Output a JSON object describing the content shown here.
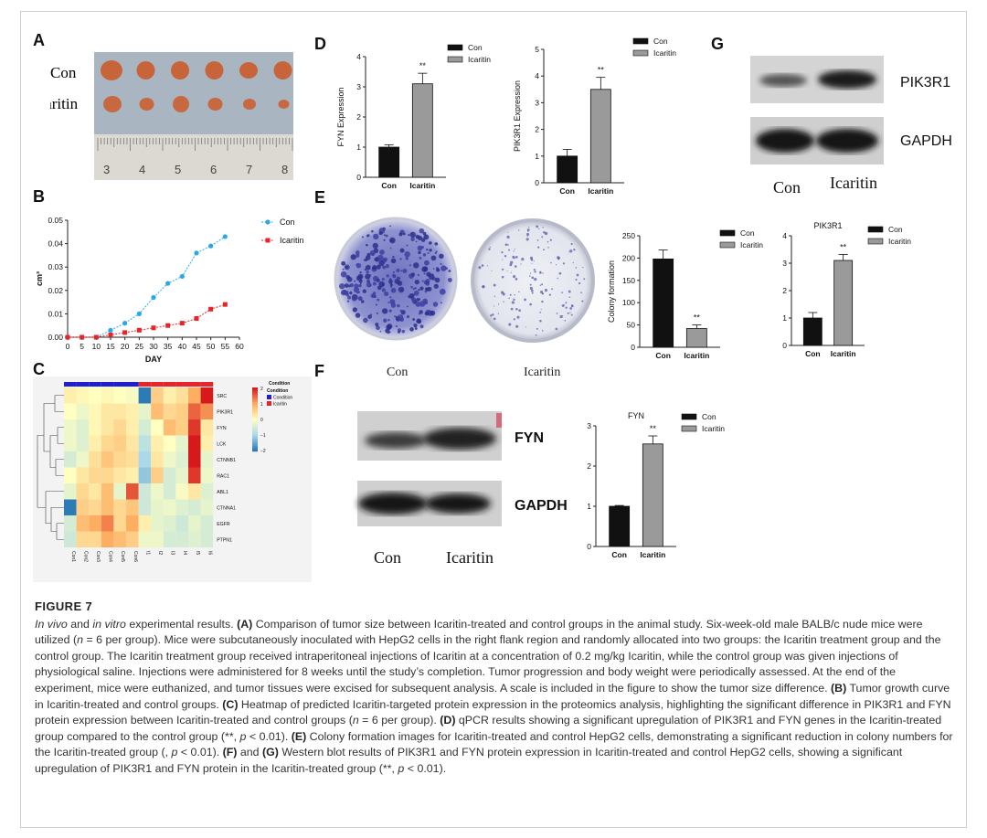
{
  "panels": {
    "A": {
      "label": "A",
      "rows": [
        "Con",
        "Icaritin"
      ],
      "ruler_ticks": [
        "3",
        "4",
        "5",
        "6",
        "7",
        "8"
      ],
      "colors": {
        "bg": "#a7b5c0",
        "tumor": "#c8643a",
        "ruler": "#d9d6d0"
      }
    },
    "B": {
      "label": "B",
      "chart_data": {
        "type": "line",
        "x": [
          0,
          5,
          10,
          15,
          20,
          25,
          30,
          35,
          40,
          45,
          50,
          55
        ],
        "series": [
          {
            "name": "Con",
            "color": "#2aa7e8",
            "values": [
              0,
              0,
              0,
              0.003,
              0.006,
              0.01,
              0.017,
              0.023,
              0.026,
              0.036,
              0.039,
              0.043
            ]
          },
          {
            "name": "Icaritin",
            "color": "#e8232a",
            "values": [
              0,
              0,
              0,
              0.001,
              0.002,
              0.003,
              0.004,
              0.005,
              0.006,
              0.008,
              0.012,
              0.014
            ]
          }
        ],
        "xlabel": "DAY",
        "ylabel": "cm³",
        "xticks": [
          "0",
          "5",
          "10",
          "15",
          "20",
          "25",
          "30",
          "35",
          "40",
          "45",
          "50",
          "55",
          "60"
        ],
        "yticks": [
          "0.00",
          "0.01",
          "0.02",
          "0.03",
          "0.04",
          "0.05"
        ],
        "xlim": [
          0,
          60
        ],
        "ylim": [
          0,
          0.05
        ]
      }
    },
    "C": {
      "label": "C",
      "chart_data": {
        "type": "heatmap",
        "rows": [
          "SRC",
          "PIK3R1",
          "FYN",
          "LCK",
          "CTNNB1",
          "RAC1",
          "ABL1",
          "CTNNA1",
          "EGFR",
          "PTPN1"
        ],
        "columns": [
          "Con1",
          "Con2",
          "Con3",
          "Con4",
          "Con5",
          "Con6",
          "I1",
          "I2",
          "I3",
          "I4",
          "I5",
          "I6"
        ],
        "values": [
          [
            0.2,
            0.1,
            0.0,
            0.1,
            0.0,
            -0.1,
            -2.0,
            0.6,
            0.2,
            0.4,
            1.0,
            2.0
          ],
          [
            0.0,
            -0.2,
            0.1,
            0.3,
            0.3,
            0.2,
            -0.3,
            0.8,
            0.5,
            0.6,
            1.5,
            1.2
          ],
          [
            -0.2,
            -0.4,
            0.1,
            0.3,
            0.5,
            0.2,
            -0.5,
            0.0,
            0.8,
            0.6,
            1.8,
            0.3
          ],
          [
            -0.2,
            -0.4,
            0.2,
            0.5,
            0.6,
            0.3,
            -0.8,
            0.2,
            0.0,
            -0.3,
            2.0,
            0.2
          ],
          [
            -0.5,
            -0.2,
            0.4,
            0.7,
            0.5,
            0.4,
            -1.0,
            0.3,
            -0.2,
            -0.4,
            2.0,
            -0.3
          ],
          [
            0.0,
            0.3,
            0.5,
            0.5,
            0.3,
            0.2,
            -1.2,
            0.6,
            -0.5,
            -0.3,
            1.8,
            -0.2
          ],
          [
            -0.3,
            0.5,
            0.3,
            0.8,
            -0.3,
            1.6,
            -0.6,
            -0.2,
            -0.5,
            -0.1,
            0.3,
            -0.4
          ],
          [
            -2.0,
            0.6,
            0.5,
            0.8,
            0.5,
            0.7,
            -0.6,
            -0.3,
            -0.2,
            -0.4,
            -0.5,
            -0.3
          ],
          [
            -0.5,
            0.8,
            1.0,
            1.3,
            0.5,
            1.0,
            0.2,
            -0.3,
            -0.4,
            -0.6,
            -0.3,
            -0.5
          ],
          [
            -0.6,
            0.5,
            0.5,
            1.0,
            0.8,
            0.6,
            -0.2,
            -0.2,
            -0.5,
            -0.5,
            -0.4,
            -0.5
          ]
        ],
        "condition_title": "Condition",
        "condition_items": [
          {
            "name": "Condition",
            "color": "#1f1fd0"
          },
          {
            "name": "Icaritin",
            "color": "#e8232a"
          }
        ],
        "scale_ticks": [
          "2",
          "1",
          "0",
          "−1",
          "−2"
        ],
        "col_condition": [
          "Condition",
          "Condition",
          "Condition",
          "Condition",
          "Condition",
          "Condition",
          "Icaritin",
          "Icaritin",
          "Icaritin",
          "Icaritin",
          "Icaritin",
          "Icaritin"
        ]
      }
    },
    "D": {
      "label": "D",
      "charts": [
        {
          "type": "bar",
          "ylabel": "FYN Expression",
          "categories": [
            "Con",
            "Icaritin"
          ],
          "values": [
            1.0,
            3.1
          ],
          "errors": [
            0.08,
            0.35
          ],
          "ylim": [
            0,
            4
          ],
          "yticks": [
            "0",
            "1",
            "2",
            "3",
            "4"
          ],
          "sig": "**",
          "legend": [
            "Con",
            "Icaritin"
          ],
          "colors": [
            "#111111",
            "#9a9a9a"
          ]
        },
        {
          "type": "bar",
          "ylabel": "PIK3R1 Expression",
          "categories": [
            "Con",
            "Icaritin"
          ],
          "values": [
            1.0,
            3.5
          ],
          "errors": [
            0.25,
            0.45
          ],
          "ylim": [
            0,
            5
          ],
          "yticks": [
            "0",
            "1",
            "2",
            "3",
            "4",
            "5"
          ],
          "sig": "**",
          "legend": [
            "Con",
            "Icaritin"
          ],
          "colors": [
            "#111111",
            "#9a9a9a"
          ]
        }
      ]
    },
    "E": {
      "label": "E",
      "plate_labels": [
        "Con",
        "Icaritin"
      ],
      "charts": [
        {
          "type": "bar",
          "ylabel": "Colony formation",
          "categories": [
            "Con",
            "Icaritin"
          ],
          "values": [
            198,
            42
          ],
          "errors": [
            20,
            8
          ],
          "ylim": [
            0,
            250
          ],
          "yticks": [
            "0",
            "50",
            "100",
            "150",
            "200",
            "250"
          ],
          "sig": "**",
          "legend": [
            "Con",
            "Icaritin"
          ],
          "colors": [
            "#111111",
            "#9a9a9a"
          ]
        },
        {
          "type": "bar",
          "title": "PIK3R1",
          "categories": [
            "Con",
            "Icaritin"
          ],
          "values": [
            1.0,
            3.1
          ],
          "errors": [
            0.2,
            0.22
          ],
          "ylim": [
            0,
            4
          ],
          "yticks": [
            "0",
            "1",
            "2",
            "3",
            "4"
          ],
          "sig": "**",
          "legend": [
            "Con",
            "Icaritin"
          ],
          "colors": [
            "#111111",
            "#9a9a9a"
          ]
        }
      ]
    },
    "F": {
      "label": "F",
      "blot_labels": [
        "FYN",
        "GAPDH"
      ],
      "lane_labels": [
        "Con",
        "Icaritin"
      ],
      "chart": {
        "type": "bar",
        "title": "FYN",
        "categories": [
          "Con",
          "Icaritin"
        ],
        "values": [
          1.0,
          2.55
        ],
        "errors": [
          0.02,
          0.2
        ],
        "ylim": [
          0,
          3
        ],
        "yticks": [
          "0",
          "1",
          "2",
          "3"
        ],
        "sig": "**",
        "legend": [
          "Con",
          "Icaritin"
        ],
        "colors": [
          "#111111",
          "#9a9a9a"
        ]
      }
    },
    "G": {
      "label": "G",
      "blot_labels": [
        "PIK3R1",
        "GAPDH"
      ],
      "lane_labels": [
        "Con",
        "Icaritin"
      ]
    }
  },
  "caption": {
    "title": "FIGURE 7",
    "segments": [
      {
        "t": "In vivo",
        "s": "i"
      },
      {
        "t": " and "
      },
      {
        "t": "in vitro",
        "s": "i"
      },
      {
        "t": " experimental results. "
      },
      {
        "t": "(A)",
        "s": "b"
      },
      {
        "t": " Comparison of tumor size between Icaritin-treated and control groups in the animal study. Six-week-old male BALB/c nude mice were utilized ("
      },
      {
        "t": "n",
        "s": "i"
      },
      {
        "t": " = 6 per group). Mice were subcutaneously inoculated with HepG2 cells in the right flank region and randomly allocated into two groups: the Icaritin treatment group and the control group. The Icaritin treatment group received intraperitoneal injections of Icaritin at a concentration of 0.2 mg/kg Icaritin, while the control group was given injections of physiological saline. Injections were administered for 8 weeks until the study’s completion. Tumor progression and body weight were periodically assessed. At the end of the experiment, mice were euthanized, and tumor tissues were excised for subsequent analysis. A scale is included in the figure to show the tumor size difference. "
      },
      {
        "t": "(B)",
        "s": "b"
      },
      {
        "t": " Tumor growth curve in Icaritin-treated and control groups. "
      },
      {
        "t": "(C)",
        "s": "b"
      },
      {
        "t": " Heatmap of predicted Icaritin-targeted protein expression in the proteomics analysis, highlighting the significant difference in PIK3R1 and FYN protein expression between Icaritin-treated and control groups ("
      },
      {
        "t": "n",
        "s": "i"
      },
      {
        "t": " = 6 per group). "
      },
      {
        "t": "(D)",
        "s": "b"
      },
      {
        "t": " qPCR results showing a significant upregulation of PIK3R1 and FYN genes in the Icaritin-treated group compared to the control group (**, "
      },
      {
        "t": "p",
        "s": "i"
      },
      {
        "t": " < 0.01). "
      },
      {
        "t": "(E)",
        "s": "b"
      },
      {
        "t": " Colony formation images for Icaritin-treated and control HepG2 cells, demonstrating a significant reduction in colony numbers for the Icaritin-treated group (, "
      },
      {
        "t": "p",
        "s": "i"
      },
      {
        "t": " < 0.01). "
      },
      {
        "t": "(F)",
        "s": "b"
      },
      {
        "t": " and "
      },
      {
        "t": "(G)",
        "s": "b"
      },
      {
        "t": " Western blot results of PIK3R1 and FYN protein expression in Icaritin-treated and control HepG2 cells, showing a significant upregulation of PIK3R1 and FYN protein in the Icaritin-treated group (**, "
      },
      {
        "t": "p",
        "s": "i"
      },
      {
        "t": " < 0.01)."
      }
    ]
  }
}
